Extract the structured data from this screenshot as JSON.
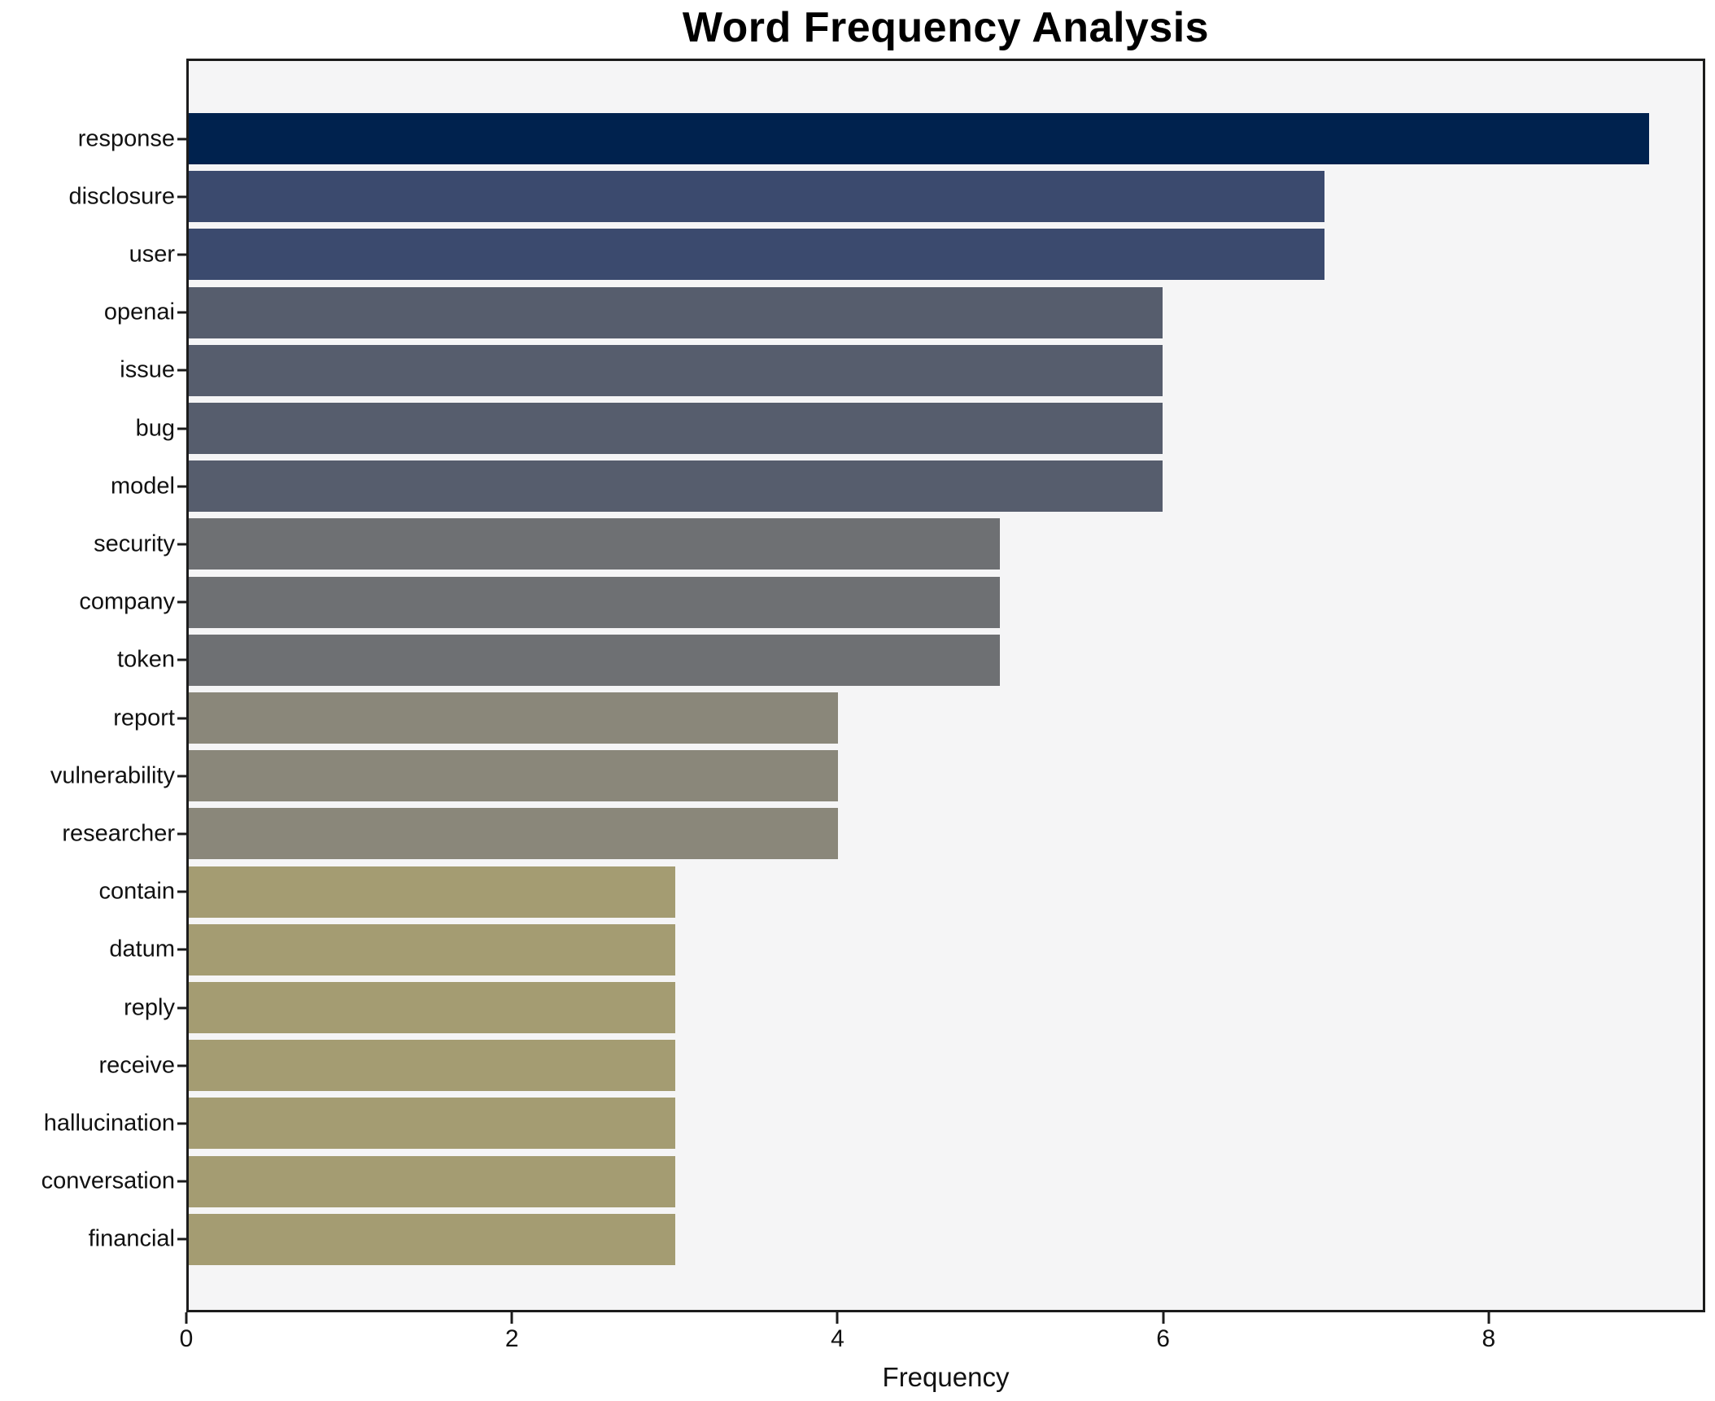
{
  "chart_data": {
    "type": "bar",
    "orientation": "horizontal",
    "title": "Word Frequency Analysis",
    "xlabel": "Frequency",
    "ylabel": "",
    "categories": [
      "response",
      "disclosure",
      "user",
      "openai",
      "issue",
      "bug",
      "model",
      "security",
      "company",
      "token",
      "report",
      "vulnerability",
      "researcher",
      "contain",
      "datum",
      "reply",
      "receive",
      "hallucination",
      "conversation",
      "financial"
    ],
    "values": [
      9,
      7,
      7,
      6,
      6,
      6,
      6,
      5,
      5,
      5,
      4,
      4,
      4,
      3,
      3,
      3,
      3,
      3,
      3,
      3
    ],
    "bar_colors": [
      "#00224e",
      "#3b4a6e",
      "#3b4a6e",
      "#565d6d",
      "#565d6d",
      "#565d6d",
      "#565d6d",
      "#6e7073",
      "#6e7073",
      "#6e7073",
      "#8a877a",
      "#8a877a",
      "#8a877a",
      "#a49c72",
      "#a49c72",
      "#a49c72",
      "#a49c72",
      "#a49c72",
      "#a49c72",
      "#a49c72"
    ],
    "xlim": [
      0,
      9.33
    ],
    "xticks": [
      0,
      2,
      4,
      6,
      8
    ],
    "grid": false,
    "legend_position": "none",
    "plot_background": "#f5f5f6",
    "figure_background": "#ffffff",
    "spine_color": "#1c1c1c"
  }
}
